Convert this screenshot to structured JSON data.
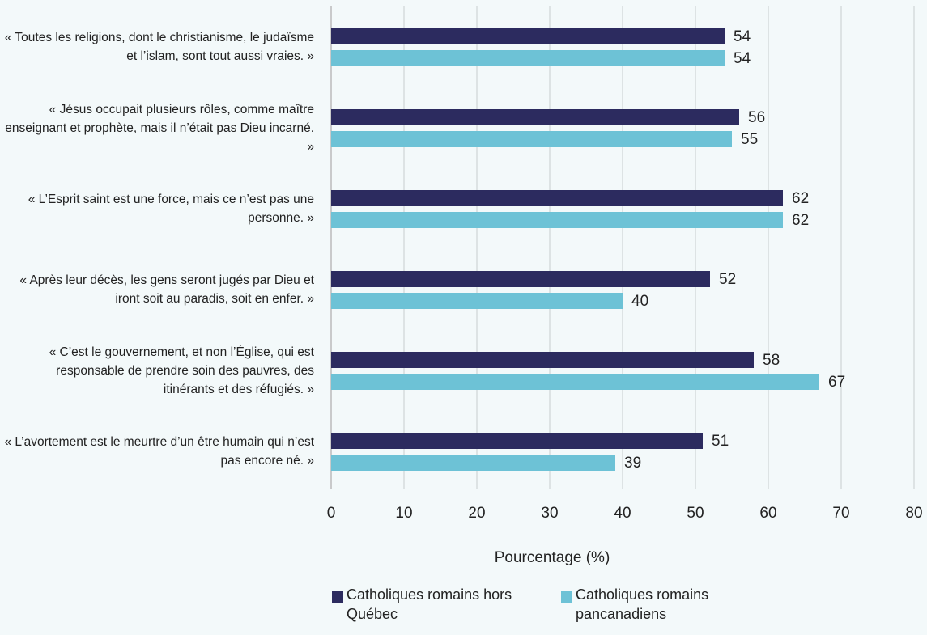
{
  "chart_data": {
    "type": "bar",
    "orientation": "horizontal",
    "categories": [
      "« Toutes les religions, dont le christianisme, le judaïsme et l’islam, sont tout aussi vraies. »",
      "« Jésus occupait plusieurs rôles, comme maître enseignant et prophète, mais il n’était pas Dieu incarné. »",
      "« L’Esprit saint est une force, mais ce n’est pas une personne. »",
      "« Après leur décès, les gens seront jugés par Dieu et iront soit au paradis, soit en enfer. »",
      "« C’est le gouvernement, et non l’Église, qui est responsable de prendre soin des pauvres, des itinérants et des réfugiés. »",
      "« L’avortement est le meurtre d’un être humain qui n’est pas encore né. »"
    ],
    "series": [
      {
        "name": "Catholiques romains hors Québec",
        "color": "#2c2b5f",
        "values": [
          54,
          56,
          62,
          52,
          58,
          51
        ]
      },
      {
        "name": "Catholiques romains pancanadiens",
        "color": "#6dc2d6",
        "values": [
          54,
          55,
          62,
          40,
          67,
          39
        ]
      }
    ],
    "xlabel": "Pourcentage (%)",
    "xlim": [
      0,
      80
    ],
    "xticks": [
      0,
      10,
      20,
      30,
      40,
      50,
      60,
      70,
      80
    ],
    "grid": true,
    "legend": "bottom"
  }
}
